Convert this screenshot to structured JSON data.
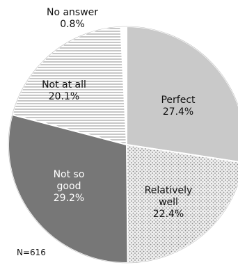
{
  "chart_data": {
    "type": "pie",
    "sample_note": "N=616",
    "slices": [
      {
        "label": "Perfect",
        "value": 27.4,
        "value_text": "27.4%",
        "color": "#c9c9c9",
        "pattern": "solid"
      },
      {
        "label": "Relatively well",
        "value": 22.4,
        "value_text": "22.4%",
        "color": "#eeeeee",
        "pattern": "dots"
      },
      {
        "label": "Not so good",
        "value": 29.2,
        "value_text": "29.2%",
        "color": "#777777",
        "pattern": "solid"
      },
      {
        "label": "Not at all",
        "value": 20.1,
        "value_text": "20.1%",
        "color": "#ffffff",
        "pattern": "horizontal-lines"
      },
      {
        "label": "No answer",
        "value": 0.8,
        "value_text": "0.8%",
        "color": "#ffffff",
        "pattern": "solid"
      }
    ]
  }
}
